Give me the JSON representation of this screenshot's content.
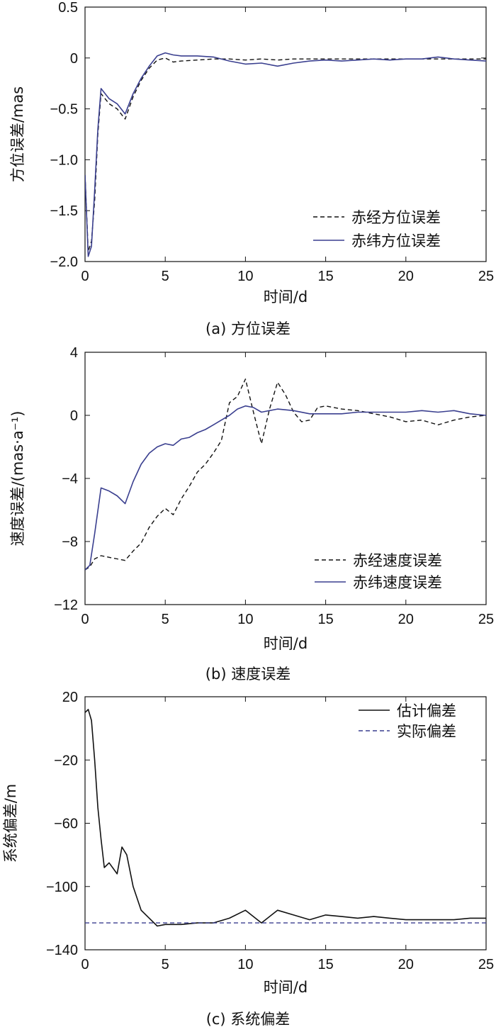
{
  "chart_data": [
    {
      "type": "line",
      "caption": "(a) 方位误差",
      "xlabel": "时间/d",
      "ylabel": "方位误差/mas",
      "xlim": [
        0,
        25
      ],
      "ylim": [
        -2.0,
        0.5
      ],
      "xticks": [
        "0",
        "5",
        "10",
        "15",
        "20",
        "25"
      ],
      "yticks": [
        "0.5",
        "0",
        "−0.5",
        "−1.0",
        "−1.5",
        "−2.0"
      ],
      "legend_position": "bottom-right",
      "series": [
        {
          "name": "赤经方位误差",
          "style": "dashed",
          "color": "#111111",
          "x": [
            0,
            0.2,
            0.4,
            0.6,
            0.8,
            1.0,
            1.5,
            2.0,
            2.5,
            3.0,
            3.5,
            4.0,
            4.5,
            5.0,
            5.5,
            6,
            7,
            8,
            9,
            10,
            11,
            12,
            13,
            14,
            15,
            16,
            17,
            18,
            19,
            20,
            21,
            22,
            23,
            24,
            25
          ],
          "y": [
            -1.15,
            -1.9,
            -1.8,
            -1.4,
            -0.75,
            -0.35,
            -0.45,
            -0.5,
            -0.6,
            -0.38,
            -0.22,
            -0.1,
            -0.02,
            0.0,
            -0.04,
            -0.03,
            -0.02,
            -0.01,
            -0.01,
            -0.02,
            -0.01,
            -0.02,
            -0.01,
            -0.01,
            -0.01,
            -0.01,
            -0.01,
            -0.01,
            -0.01,
            -0.01,
            -0.01,
            -0.01,
            -0.01,
            -0.01,
            -0.01
          ]
        },
        {
          "name": "赤纬方位误差",
          "style": "solid",
          "color": "#3a3f8f",
          "x": [
            0,
            0.2,
            0.4,
            0.6,
            0.8,
            1.0,
            1.5,
            2.0,
            2.5,
            3.0,
            3.5,
            4.0,
            4.5,
            5.0,
            5.5,
            6,
            7,
            8,
            9,
            10,
            11,
            12,
            13,
            14,
            15,
            16,
            17,
            18,
            19,
            20,
            21,
            22,
            23,
            24,
            25
          ],
          "y": [
            -1.15,
            -1.95,
            -1.85,
            -1.3,
            -0.7,
            -0.3,
            -0.4,
            -0.45,
            -0.55,
            -0.35,
            -0.2,
            -0.08,
            0.02,
            0.05,
            0.03,
            0.02,
            0.02,
            0.01,
            -0.03,
            -0.06,
            -0.05,
            -0.08,
            -0.05,
            -0.03,
            -0.02,
            -0.03,
            -0.02,
            -0.01,
            -0.02,
            -0.01,
            -0.01,
            0.01,
            -0.01,
            -0.02,
            -0.03
          ]
        }
      ]
    },
    {
      "type": "line",
      "caption": "(b) 速度误差",
      "xlabel": "时间/d",
      "ylabel": "速度误差/(mas·a⁻¹)",
      "xlim": [
        0,
        25
      ],
      "ylim": [
        -12,
        4
      ],
      "xticks": [
        "0",
        "5",
        "10",
        "15",
        "20",
        "25"
      ],
      "yticks": [
        "4",
        "0",
        "−4",
        "−8",
        "−12"
      ],
      "legend_position": "bottom-right",
      "series": [
        {
          "name": "赤经速度误差",
          "style": "dashed",
          "color": "#111111",
          "x": [
            0,
            0.3,
            0.6,
            1,
            1.5,
            2,
            2.5,
            3,
            3.5,
            4,
            4.5,
            5,
            5.5,
            6,
            6.5,
            7,
            7.5,
            8,
            8.5,
            9,
            9.5,
            10,
            10.5,
            11,
            11.5,
            12,
            12.5,
            13,
            13.5,
            14,
            14.5,
            15,
            16,
            17,
            18,
            19,
            20,
            21,
            22,
            23,
            24,
            25
          ],
          "y": [
            -9.8,
            -9.6,
            -9.1,
            -8.9,
            -9.0,
            -9.1,
            -9.2,
            -8.6,
            -8.1,
            -7.1,
            -6.4,
            -5.9,
            -6.3,
            -5.3,
            -4.5,
            -3.6,
            -3.1,
            -2.4,
            -1.6,
            0.8,
            1.2,
            2.3,
            0.2,
            -1.8,
            0.4,
            2.1,
            1.3,
            0.2,
            -0.4,
            -0.3,
            0.5,
            0.6,
            0.4,
            0.3,
            0.1,
            -0.1,
            -0.4,
            -0.3,
            -0.6,
            -0.3,
            -0.1,
            0.0
          ]
        },
        {
          "name": "赤纬速度误差",
          "style": "solid",
          "color": "#3a3f8f",
          "x": [
            0,
            0.3,
            0.6,
            1,
            1.5,
            2,
            2.5,
            3,
            3.5,
            4,
            4.5,
            5,
            5.5,
            6,
            6.5,
            7,
            7.5,
            8,
            8.5,
            9,
            9.5,
            10,
            10.5,
            11,
            12,
            13,
            14,
            15,
            16,
            17,
            18,
            19,
            20,
            21,
            22,
            23,
            24,
            25
          ],
          "y": [
            -9.8,
            -9.5,
            -7.5,
            -4.6,
            -4.8,
            -5.1,
            -5.6,
            -4.2,
            -3.1,
            -2.4,
            -2.0,
            -1.8,
            -1.9,
            -1.5,
            -1.4,
            -1.1,
            -0.9,
            -0.6,
            -0.3,
            0.0,
            0.4,
            0.6,
            0.5,
            0.2,
            0.4,
            0.3,
            0.1,
            0.1,
            0.1,
            0.2,
            0.2,
            0.2,
            0.2,
            0.3,
            0.2,
            0.3,
            0.1,
            0.0
          ]
        }
      ]
    },
    {
      "type": "line",
      "caption": "(c) 系统偏差",
      "xlabel": "时间/d",
      "ylabel": "系统偏差/m",
      "xlim": [
        0,
        25
      ],
      "ylim": [
        -140,
        20
      ],
      "xticks": [
        "0",
        "5",
        "10",
        "15",
        "20",
        "25"
      ],
      "yticks": [
        "20",
        "−20",
        "−60",
        "−100",
        "−140"
      ],
      "legend_position": "top-right",
      "series": [
        {
          "name": "估计偏差",
          "style": "solid",
          "color": "#111111",
          "x": [
            0,
            0.2,
            0.4,
            0.6,
            0.8,
            1.0,
            1.2,
            1.5,
            2.0,
            2.3,
            2.6,
            3.0,
            3.5,
            4.0,
            4.5,
            5.0,
            6,
            7,
            8,
            9,
            10,
            11,
            12,
            13,
            14,
            15,
            16,
            17,
            18,
            19,
            20,
            21,
            22,
            23,
            24,
            25
          ],
          "y": [
            10,
            12,
            5,
            -20,
            -50,
            -70,
            -88,
            -85,
            -92,
            -75,
            -80,
            -100,
            -115,
            -120,
            -125,
            -124,
            -124,
            -123,
            -123,
            -120,
            -115,
            -123,
            -115,
            -118,
            -121,
            -118,
            -119,
            -120,
            -119,
            -120,
            -121,
            -121,
            -121,
            -121,
            -120,
            -120
          ]
        },
        {
          "name": "实际偏差",
          "style": "dashed",
          "color": "#3a3f8f",
          "x": [
            0,
            25
          ],
          "y": [
            -123,
            -123
          ]
        }
      ]
    }
  ]
}
